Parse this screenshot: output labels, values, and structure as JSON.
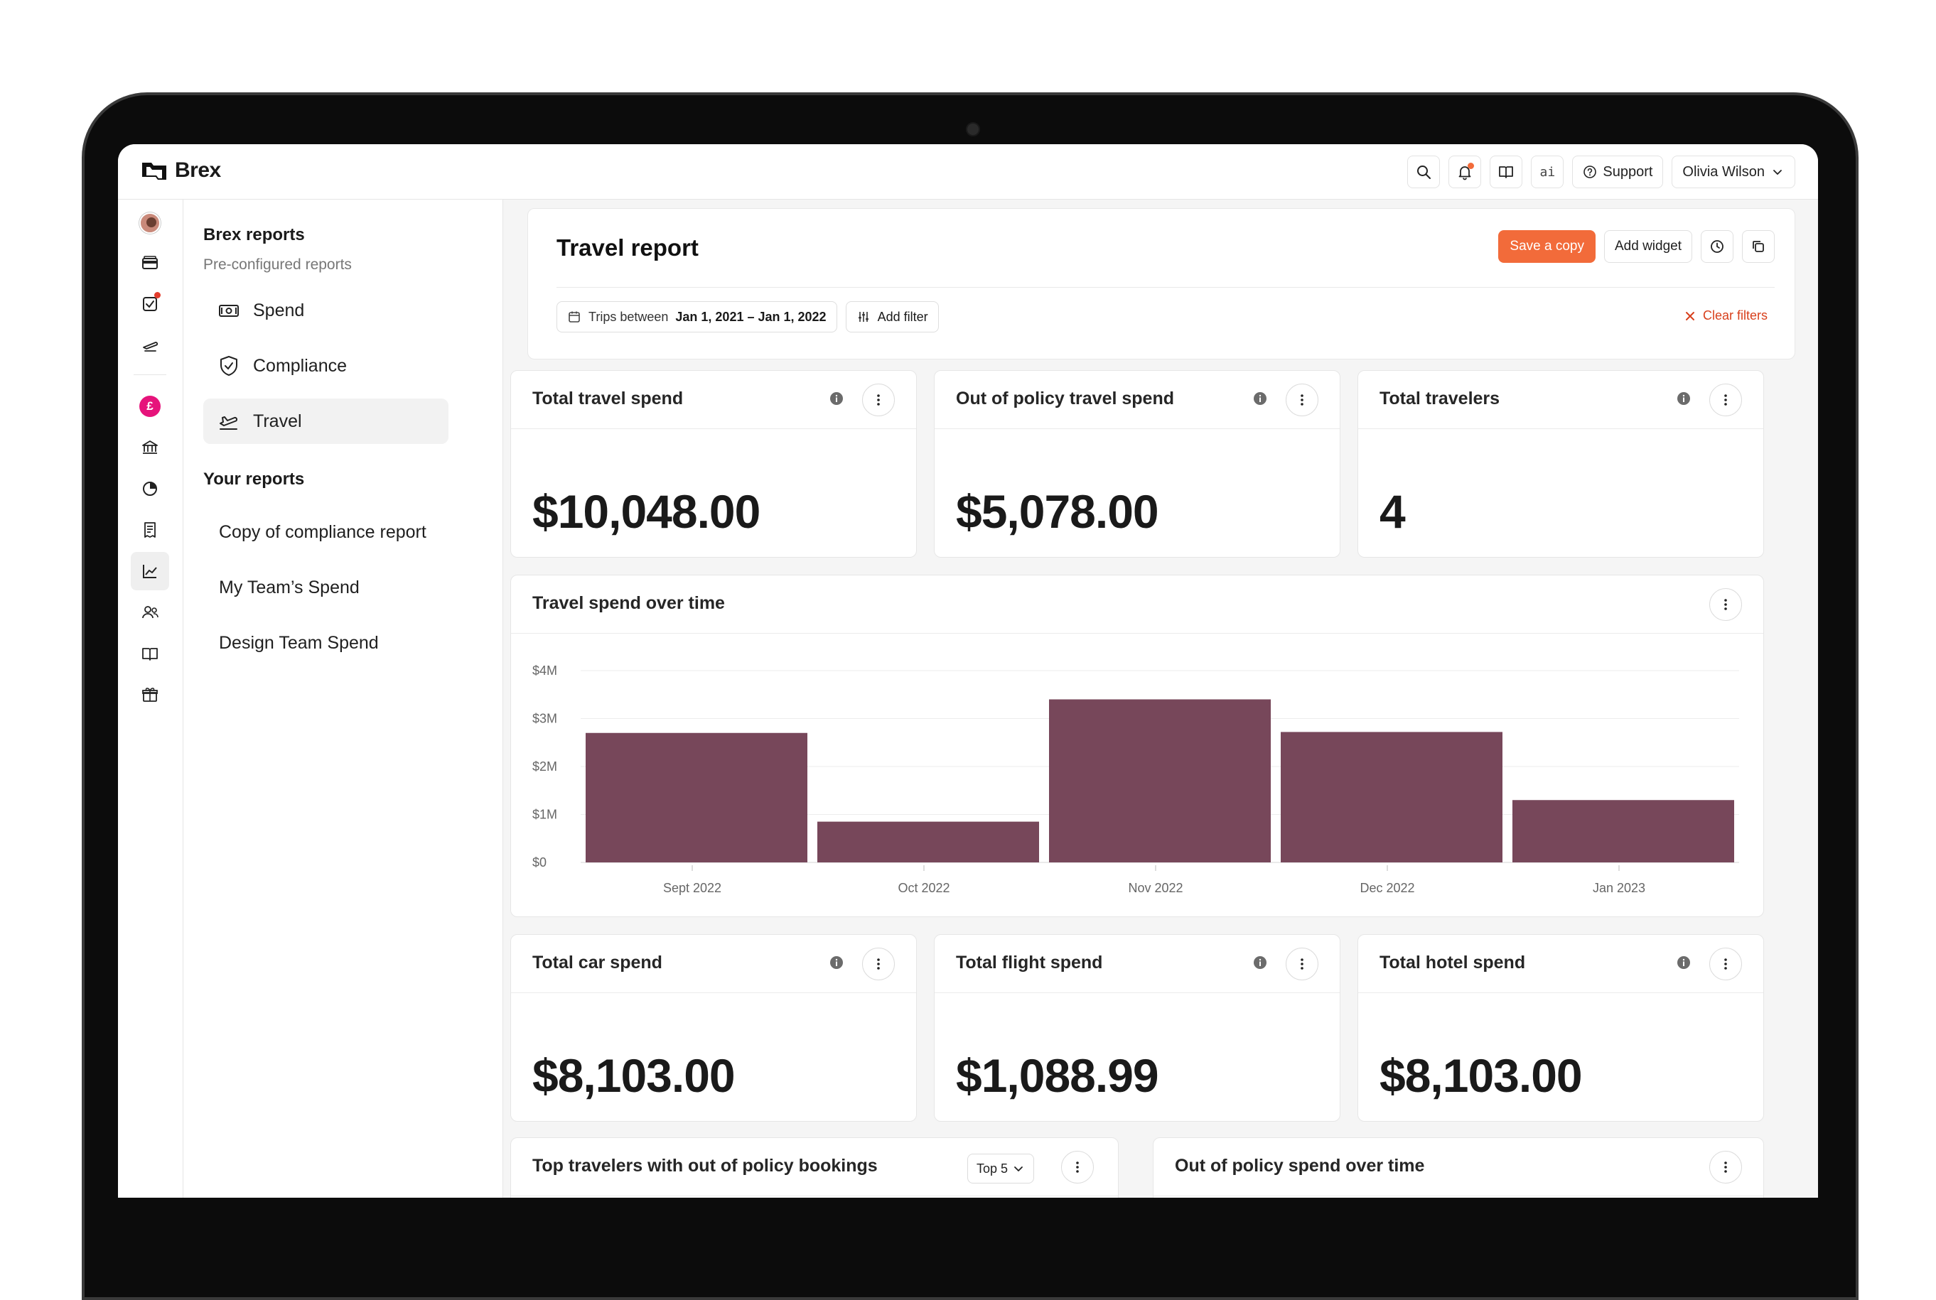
{
  "app": {
    "brand": "Brex",
    "top_actions": {
      "support_label": "Support",
      "ai_label": "ai",
      "user_name": "Olivia Wilson"
    }
  },
  "subnav": {
    "section_title": "Brex reports",
    "section_subtitle": "Pre-configured reports",
    "preconfigured": [
      {
        "label": "Spend",
        "icon": "cash-icon"
      },
      {
        "label": "Compliance",
        "icon": "shield-check-icon"
      },
      {
        "label": "Travel",
        "icon": "plane-icon",
        "active": true
      }
    ],
    "your_reports_title": "Your reports",
    "your_reports": [
      {
        "label": "Copy of compliance report"
      },
      {
        "label": "My Team’s Spend"
      },
      {
        "label": "Design Team Spend"
      }
    ]
  },
  "rail": {
    "pink_badge": "£"
  },
  "report": {
    "title": "Travel report",
    "save_copy_label": "Save a copy",
    "add_widget_label": "Add widget",
    "filter": {
      "label": "Trips between",
      "value": "Jan 1, 2021 – Jan 1, 2022"
    },
    "add_filter_label": "Add filter",
    "clear_filters_label": "Clear filters"
  },
  "stats_top": [
    {
      "title": "Total travel spend",
      "value": "$10,048.00"
    },
    {
      "title": "Out of policy travel spend",
      "value": "$5,078.00"
    },
    {
      "title": "Total travelers",
      "value": "4"
    }
  ],
  "chart_card": {
    "title": "Travel spend over time"
  },
  "chart_data": {
    "type": "bar",
    "title": "Travel spend over time",
    "categories": [
      "Sept 2022",
      "Oct 2022",
      "Nov 2022",
      "Dec 2022",
      "Jan 2023"
    ],
    "values": [
      2.7,
      0.85,
      3.4,
      2.72,
      1.3
    ],
    "unit": "$M",
    "ylim": [
      0,
      4
    ],
    "yticks": [
      "$0",
      "$1M",
      "$2M",
      "$3M",
      "$4M"
    ],
    "grid": true,
    "color": "#77475a"
  },
  "stats_bottom": [
    {
      "title": "Total car spend",
      "value": "$8,103.00"
    },
    {
      "title": "Total flight spend",
      "value": "$1,088.99"
    },
    {
      "title": "Total hotel spend",
      "value": "$8,103.00"
    }
  ],
  "bottom_cards": {
    "top_travelers_title": "Top travelers with out of policy bookings",
    "top_select_value": "Top 5",
    "oop_over_time_title": "Out of policy spend over time"
  },
  "colors": {
    "accent": "#f26b3a",
    "bar": "#77475a",
    "danger": "#d8401c",
    "pink": "#e6137b"
  }
}
